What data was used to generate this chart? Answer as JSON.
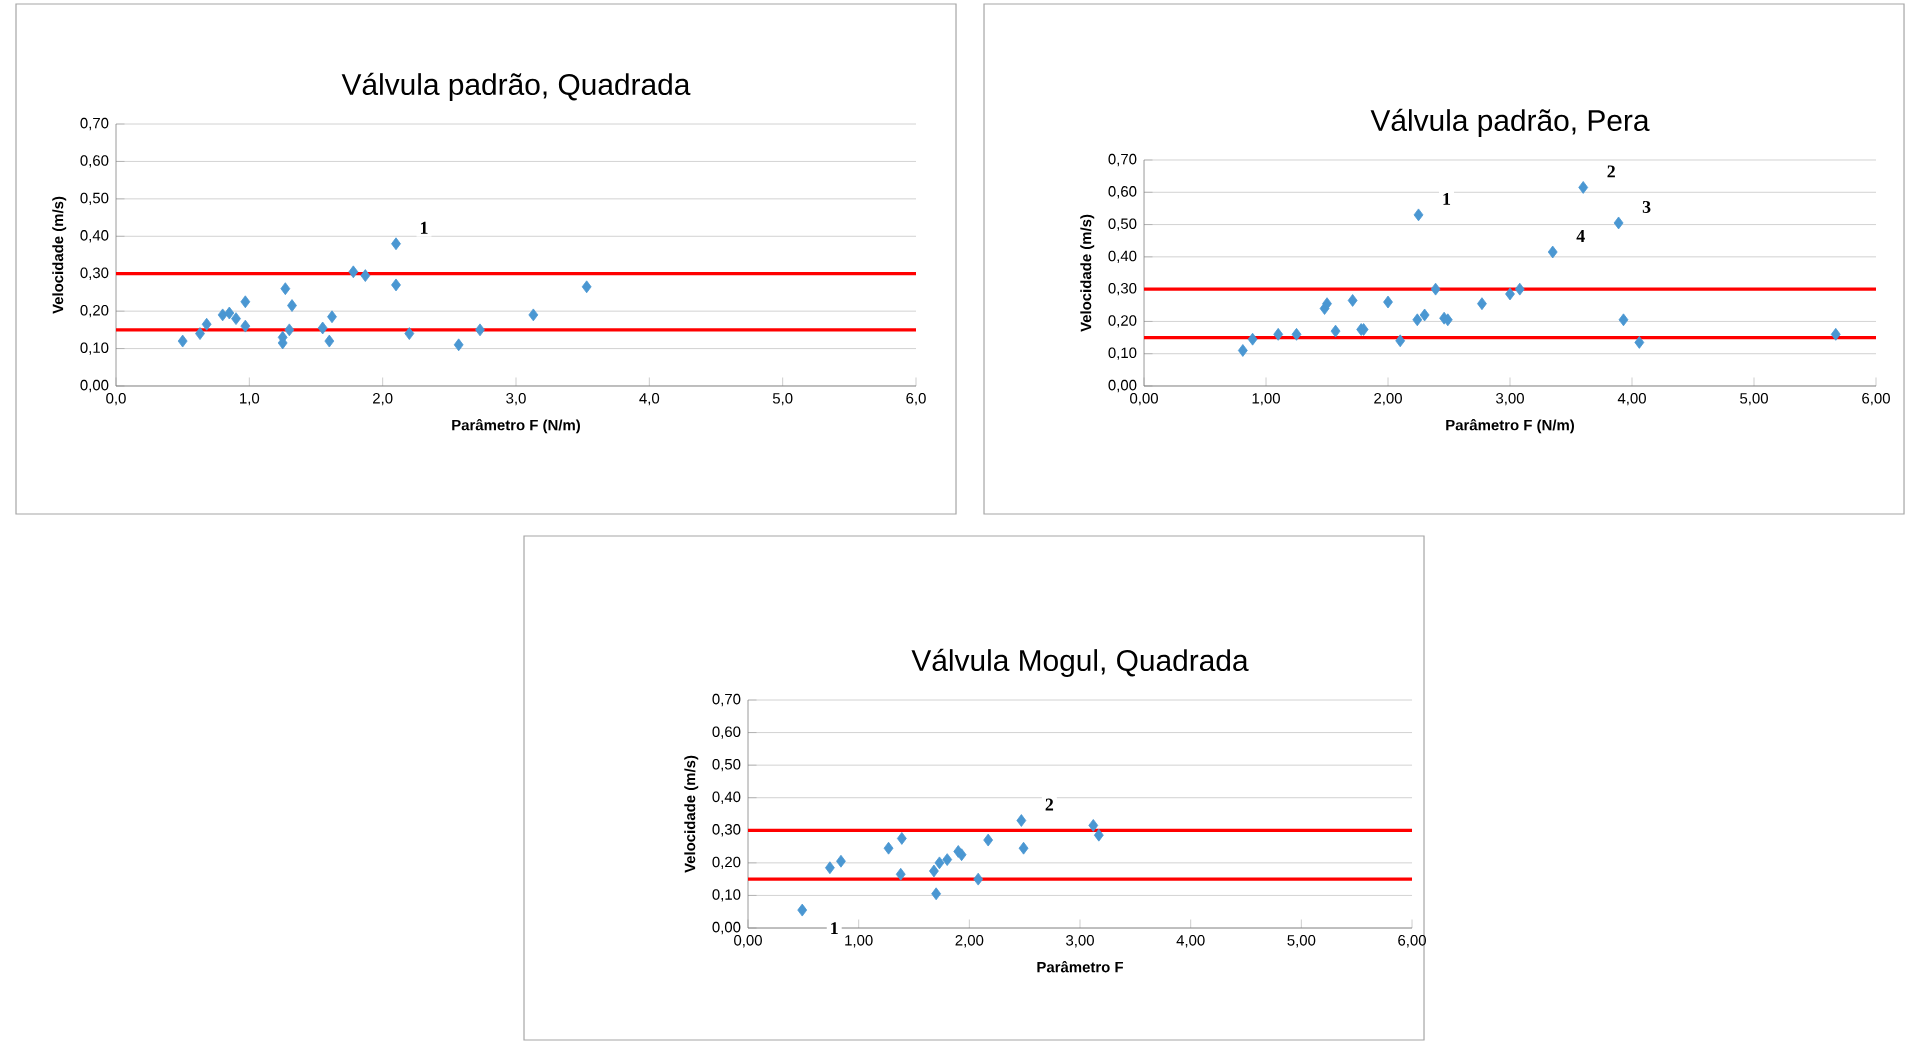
{
  "chart_data": [
    {
      "type": "scatter",
      "title": "Válvula padrão, Quadrada",
      "xlabel": "Parâmetro F (N/m)",
      "ylabel": "Velocidade (m/s)",
      "color": "#4a97d2",
      "marker": "diamond",
      "grid": "y",
      "x": [
        0.5,
        0.63,
        0.68,
        0.8,
        0.85,
        0.9,
        0.97,
        0.97,
        1.25,
        1.25,
        1.27,
        1.3,
        1.32,
        1.55,
        1.6,
        1.62,
        1.78,
        1.87,
        2.1,
        2.1,
        2.2,
        2.57,
        2.73,
        3.13,
        3.53
      ],
      "values": [
        0.12,
        0.14,
        0.165,
        0.19,
        0.195,
        0.18,
        0.225,
        0.16,
        0.13,
        0.115,
        0.26,
        0.15,
        0.215,
        0.155,
        0.12,
        0.185,
        0.305,
        0.295,
        0.38,
        0.27,
        0.14,
        0.11,
        0.15,
        0.19,
        0.265
      ],
      "xlim": [
        0,
        6
      ],
      "ylim": [
        0,
        0.7
      ],
      "xticks": [
        {
          "value": 0,
          "label": "0,0"
        },
        {
          "value": 1,
          "label": "1,0"
        },
        {
          "value": 2,
          "label": "2,0"
        },
        {
          "value": 3,
          "label": "3,0"
        },
        {
          "value": 4,
          "label": "4,0"
        },
        {
          "value": 5,
          "label": "5,0"
        },
        {
          "value": 6,
          "label": "6,0"
        }
      ],
      "yticks": [
        {
          "value": 0,
          "label": "0,00"
        },
        {
          "value": 0.1,
          "label": "0,10"
        },
        {
          "value": 0.2,
          "label": "0,20"
        },
        {
          "value": 0.3,
          "label": "0,30"
        },
        {
          "value": 0.4,
          "label": "0,40"
        },
        {
          "value": 0.5,
          "label": "0,50"
        },
        {
          "value": 0.6,
          "label": "0,60"
        },
        {
          "value": 0.7,
          "label": "0,70"
        }
      ],
      "ref_lines": [
        {
          "axis": "y",
          "value": 0.3,
          "color": "#ff0000"
        },
        {
          "axis": "y",
          "value": 0.15,
          "color": "#ff0000"
        }
      ],
      "annotations": [
        {
          "text": "1",
          "x": 2.1,
          "y": 0.38
        }
      ]
    },
    {
      "type": "scatter",
      "title": "Válvula padrão, Pera",
      "xlabel": "Parâmetro F (N/m)",
      "ylabel": "Velocidade (m/s)",
      "color": "#4a97d2",
      "marker": "diamond",
      "grid": "y",
      "x": [
        0.81,
        0.89,
        1.1,
        1.25,
        1.48,
        1.5,
        1.57,
        1.71,
        1.78,
        1.8,
        2.0,
        2.1,
        2.25,
        2.24,
        2.3,
        2.39,
        2.46,
        2.49,
        2.77,
        3.0,
        3.08,
        3.35,
        3.6,
        3.89,
        3.93,
        4.06,
        5.67
      ],
      "values": [
        0.11,
        0.145,
        0.16,
        0.16,
        0.24,
        0.255,
        0.17,
        0.265,
        0.175,
        0.175,
        0.26,
        0.14,
        0.53,
        0.205,
        0.22,
        0.3,
        0.21,
        0.205,
        0.255,
        0.285,
        0.3,
        0.415,
        0.615,
        0.505,
        0.205,
        0.135,
        0.16
      ],
      "xlim": [
        0,
        6
      ],
      "ylim": [
        0,
        0.7
      ],
      "xticks": [
        {
          "value": 0,
          "label": "0,00"
        },
        {
          "value": 1,
          "label": "1,00"
        },
        {
          "value": 2,
          "label": "2,00"
        },
        {
          "value": 3,
          "label": "3,00"
        },
        {
          "value": 4,
          "label": "4,00"
        },
        {
          "value": 5,
          "label": "5,00"
        },
        {
          "value": 6,
          "label": "6,00"
        }
      ],
      "yticks": [
        {
          "value": 0,
          "label": "0,00"
        },
        {
          "value": 0.1,
          "label": "0,10"
        },
        {
          "value": 0.2,
          "label": "0,20"
        },
        {
          "value": 0.3,
          "label": "0,30"
        },
        {
          "value": 0.4,
          "label": "0,40"
        },
        {
          "value": 0.5,
          "label": "0,50"
        },
        {
          "value": 0.6,
          "label": "0,60"
        },
        {
          "value": 0.7,
          "label": "0,70"
        }
      ],
      "ref_lines": [
        {
          "axis": "y",
          "value": 0.3,
          "color": "#ff0000"
        },
        {
          "axis": "y",
          "value": 0.15,
          "color": "#ff0000"
        }
      ],
      "annotations": [
        {
          "text": "1",
          "x": 2.25,
          "y": 0.53
        },
        {
          "text": "2",
          "x": 3.6,
          "y": 0.615
        },
        {
          "text": "3",
          "x": 3.89,
          "y": 0.505
        },
        {
          "text": "4",
          "x": 3.35,
          "y": 0.415
        }
      ]
    },
    {
      "type": "scatter",
      "title": "Válvula Mogul, Quadrada",
      "xlabel": "Parâmetro F",
      "ylabel": "Velocidade (m/s)",
      "color": "#4a97d2",
      "marker": "diamond",
      "grid": "y",
      "x": [
        0.49,
        0.74,
        0.84,
        1.27,
        1.39,
        1.38,
        1.68,
        1.7,
        1.73,
        1.8,
        1.9,
        1.93,
        2.08,
        2.17,
        2.47,
        2.49,
        3.12,
        3.17
      ],
      "values": [
        0.055,
        0.185,
        0.205,
        0.245,
        0.275,
        0.165,
        0.175,
        0.105,
        0.2,
        0.21,
        0.235,
        0.225,
        0.15,
        0.27,
        0.33,
        0.245,
        0.315,
        0.285
      ],
      "xlim": [
        0,
        6
      ],
      "ylim": [
        0,
        0.7
      ],
      "xticks": [
        {
          "value": 0,
          "label": "0,00"
        },
        {
          "value": 1,
          "label": "1,00"
        },
        {
          "value": 2,
          "label": "2,00"
        },
        {
          "value": 3,
          "label": "3,00"
        },
        {
          "value": 4,
          "label": "4,00"
        },
        {
          "value": 5,
          "label": "5,00"
        },
        {
          "value": 6,
          "label": "6,00"
        }
      ],
      "yticks": [
        {
          "value": 0,
          "label": "0,00"
        },
        {
          "value": 0.1,
          "label": "0,10"
        },
        {
          "value": 0.2,
          "label": "0,20"
        },
        {
          "value": 0.3,
          "label": "0,30"
        },
        {
          "value": 0.4,
          "label": "0,40"
        },
        {
          "value": 0.5,
          "label": "0,50"
        },
        {
          "value": 0.6,
          "label": "0,60"
        },
        {
          "value": 0.7,
          "label": "0,70"
        }
      ],
      "ref_lines": [
        {
          "axis": "y",
          "value": 0.3,
          "color": "#ff0000"
        },
        {
          "axis": "y",
          "value": 0.15,
          "color": "#ff0000"
        }
      ],
      "annotations": [
        {
          "text": "1",
          "x": 0.49,
          "y": 0.055
        },
        {
          "text": "2",
          "x": 2.47,
          "y": 0.33
        }
      ]
    }
  ]
}
